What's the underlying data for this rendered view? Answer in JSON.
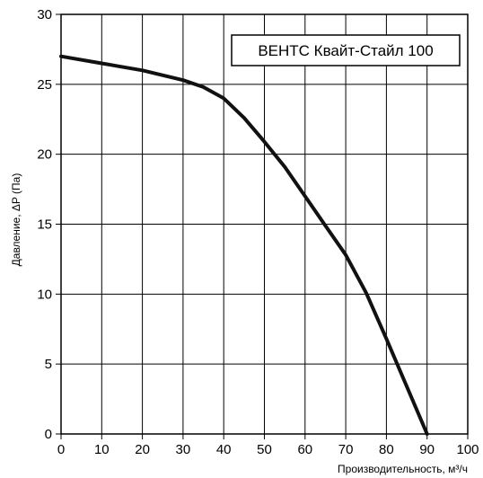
{
  "chart_data": {
    "type": "line",
    "title": "",
    "xlabel": "Производительность, м³/ч",
    "ylabel": "Давление, ΔP (Па)",
    "xlim": [
      0,
      100
    ],
    "ylim": [
      0,
      30
    ],
    "x_ticks": [
      0,
      10,
      20,
      30,
      40,
      50,
      60,
      70,
      80,
      90,
      100
    ],
    "y_ticks": [
      0,
      5,
      10,
      15,
      20,
      25,
      30
    ],
    "grid": true,
    "legend_position": "top-right",
    "series": [
      {
        "name": "ВЕНТС Квайт-Стайл 100",
        "color": "#111111",
        "x": [
          0,
          10,
          20,
          30,
          35,
          40,
          45,
          50,
          55,
          60,
          65,
          70,
          75,
          80,
          85,
          90
        ],
        "y": [
          27,
          26.5,
          26,
          25.3,
          24.8,
          24,
          22.6,
          20.9,
          19.1,
          17,
          14.9,
          12.8,
          10.1,
          6.8,
          3.4,
          0
        ]
      }
    ]
  }
}
